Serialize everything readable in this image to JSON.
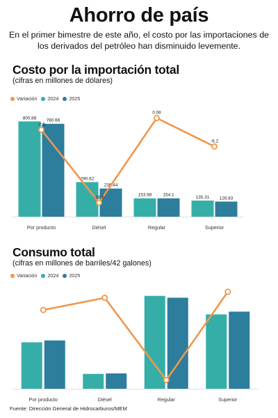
{
  "header": {
    "title": "Ahorro de país",
    "deck": "En el primer bimestre de este año, el costo por las importaciones de los derivados del petróleo han disminuido levemente."
  },
  "colors": {
    "variation": "#f0974c",
    "y2024": "#36aea8",
    "y2025": "#2d7d9d",
    "baseline": "#dddddd"
  },
  "chart_data": [
    {
      "type": "bar",
      "title": "Costo por la importación total",
      "subtitle": "(cifras en millones de dólares)",
      "legend": [
        "Variación",
        "2024",
        "2025"
      ],
      "legend_position": "top-left",
      "categories": [
        "Por producto",
        "Diésel",
        "Regular",
        "Superior"
      ],
      "series": [
        {
          "name": "2024",
          "values": [
            800.88,
            290.62,
            153.98,
            135.31
          ]
        },
        {
          "name": "2025",
          "values": [
            780.66,
            236.44,
            154.1,
            126.83
          ]
        }
      ],
      "value_labels": {
        "2024": [
          "800.88",
          "290.62",
          "153.98",
          "135.31"
        ],
        "2025": [
          "780.66",
          "236.44",
          "154.1",
          "126.83"
        ]
      },
      "line_series": {
        "name": "Variación",
        "values": [
          -2.5,
          -18.6,
          0.08,
          -6.2
        ],
        "labels": [
          "-2.5",
          "-18.6",
          "0.08",
          "-6.2"
        ],
        "ylim": [
          -20,
          2
        ]
      },
      "ylim": [
        0,
        820
      ],
      "grid": false
    },
    {
      "type": "bar",
      "title": "Consumo total",
      "subtitle": "(cifras en millones de barriles/42 galones)",
      "legend": [
        "Variación",
        "2024",
        "2025"
      ],
      "legend_position": "top-left",
      "categories": [
        "Por producto",
        "Diésel",
        "Regular",
        "Superior"
      ],
      "series": [
        {
          "name": "2024",
          "values": [
            50,
            16,
            100,
            80
          ]
        },
        {
          "name": "2025",
          "values": [
            52,
            16.5,
            98,
            83
          ]
        }
      ],
      "line_series": {
        "name": "Variación",
        "values": [
          55,
          75,
          -60,
          85
        ],
        "ylim": [
          -65,
          95
        ]
      },
      "ylim": [
        0,
        102
      ],
      "grid": false
    }
  ],
  "footer": {
    "source": "Fuente: Dirección General de Hidrocarburos/MEM"
  }
}
